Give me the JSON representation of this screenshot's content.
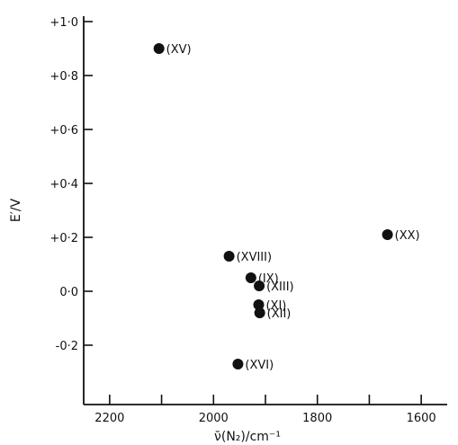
{
  "chart_data": {
    "type": "scatter",
    "title": "",
    "xlabel": "ν̄(N₂)/cm⁻¹",
    "ylabel": "E′/V",
    "xlim": [
      2250,
      1550
    ],
    "ylim": [
      -0.42,
      1.02
    ],
    "x_reversed": true,
    "grid": false,
    "legend": "none",
    "x_ticks": [
      2200,
      2100,
      2000,
      1900,
      1800,
      1700,
      1600
    ],
    "x_tick_labels": [
      "2200",
      "",
      "2000",
      "",
      "1800",
      "",
      "1600"
    ],
    "y_ticks": [
      1.0,
      0.8,
      0.6,
      0.4,
      0.2,
      0.0,
      -0.2
    ],
    "y_tick_labels": [
      "+1·0",
      "+0·8",
      "+0·6",
      "+0·4",
      "+0·2",
      "0·0",
      "-0·2"
    ],
    "points": [
      {
        "label": "(XV)",
        "x": 2105,
        "y": 0.9
      },
      {
        "label": "(XX)",
        "x": 1665,
        "y": 0.21
      },
      {
        "label": "(XVIII)",
        "x": 1970,
        "y": 0.13
      },
      {
        "label": "(IX)",
        "x": 1928,
        "y": 0.05
      },
      {
        "label": "(XIII)",
        "x": 1912,
        "y": 0.02
      },
      {
        "label": "(XI)",
        "x": 1913,
        "y": -0.05
      },
      {
        "label": "(XII)",
        "x": 1911,
        "y": -0.08
      },
      {
        "label": "(XVI)",
        "x": 1953,
        "y": -0.27
      }
    ],
    "colors": {
      "ink": "#111111",
      "background": "#ffffff"
    }
  }
}
